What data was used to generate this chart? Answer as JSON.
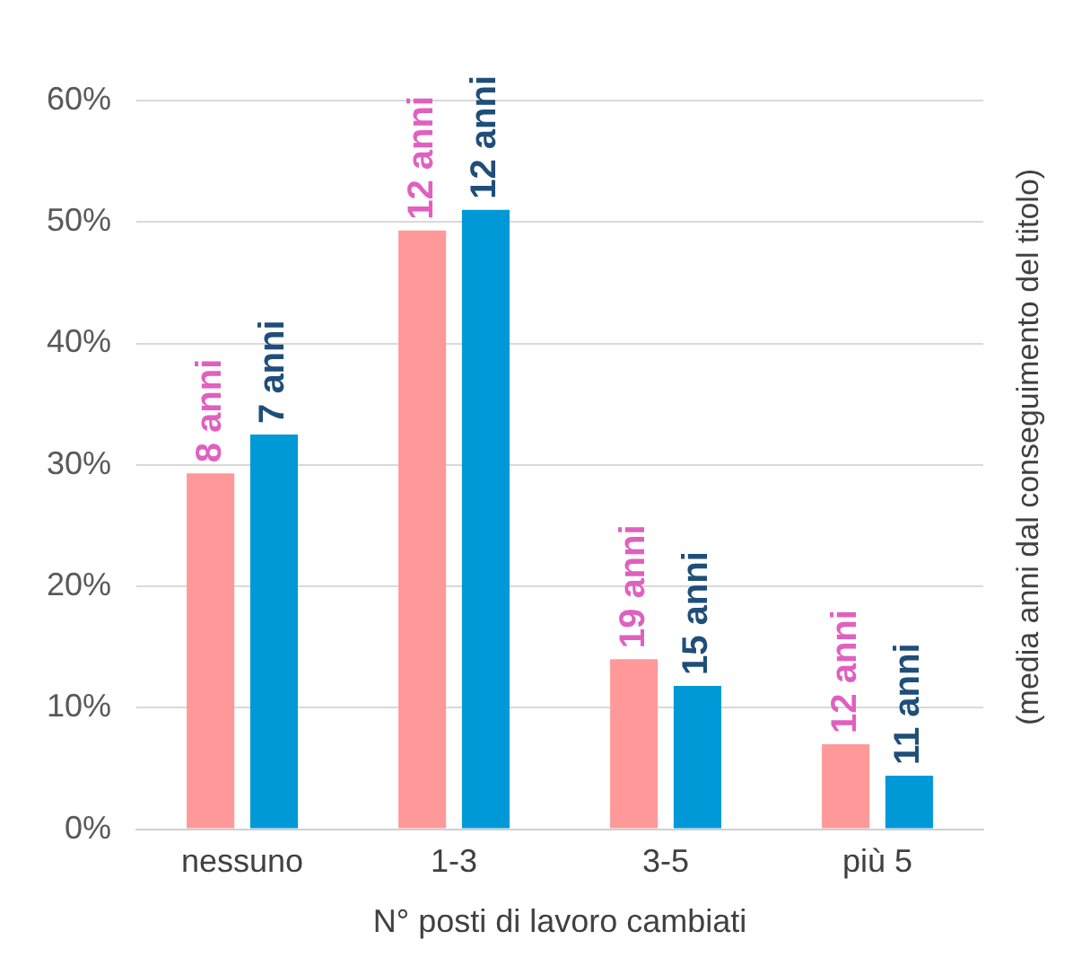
{
  "chart_data": {
    "type": "bar",
    "xlabel": "N° posti di lavoro cambiati",
    "y2label": "(media anni dal conseguimento del titolo)",
    "categories": [
      "nessuno",
      "1-3",
      "3-5",
      "più 5"
    ],
    "series": [
      {
        "color": "#ff9999",
        "values": [
          29.3,
          49.3,
          14,
          7
        ]
      },
      {
        "color": "#0099d8",
        "values": [
          32.5,
          51,
          11.8,
          4.4
        ]
      }
    ],
    "annotations": [
      {
        "text": "8 anni",
        "x": "nessuno",
        "y": 29.3
      },
      {
        "text": "12 anni",
        "x": "1-3",
        "y": 49.3
      },
      {
        "text": "19 anni",
        "x": "3-5",
        "y": 14
      },
      {
        "text": "12 anni",
        "x": "più 5",
        "y": 7
      },
      {
        "text": "7 anni",
        "x": "nessuno",
        "y": 32.5
      },
      {
        "text": "12 anni",
        "x": "1-3",
        "y": 51
      },
      {
        "text": "15 anni",
        "x": "3-5",
        "y": 11.8
      },
      {
        "text": "11 anni",
        "x": "più 5",
        "y": 4.4
      }
    ],
    "ylim": [
      0,
      60
    ],
    "yticks": [
      {
        "value": 0,
        "label": "0%"
      },
      {
        "value": 10,
        "label": "10%"
      },
      {
        "value": 20,
        "label": "20%"
      },
      {
        "value": 30,
        "label": "30%"
      },
      {
        "value": 40,
        "label": "40%"
      },
      {
        "value": 50,
        "label": "50%"
      },
      {
        "value": 60,
        "label": "60%"
      }
    ],
    "grid": "y",
    "legend": false
  }
}
